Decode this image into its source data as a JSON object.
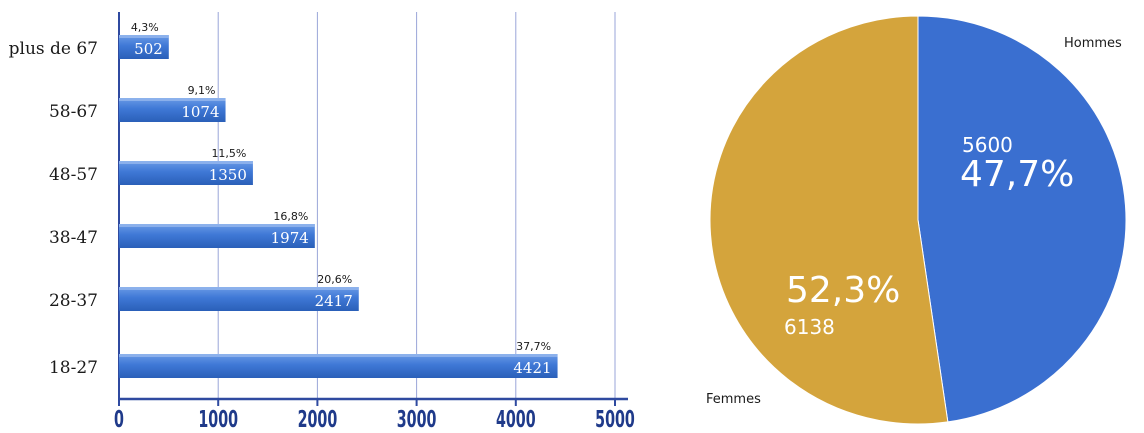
{
  "chart_data": [
    {
      "type": "bar",
      "orientation": "horizontal",
      "categories": [
        "plus de 67",
        "58-67",
        "48-57",
        "38-47",
        "28-37",
        "18-27"
      ],
      "values": [
        502,
        1074,
        1350,
        1974,
        2417,
        4421
      ],
      "percent_labels": [
        "4,3%",
        "9,1%",
        "11,5%",
        "16,8%",
        "20,6%",
        "37,7%"
      ],
      "value_labels": [
        "502",
        "1074",
        "1350",
        "1974",
        "2417",
        "4421"
      ],
      "xlim": [
        0,
        5000
      ],
      "x_ticks": [
        "0",
        "1000",
        "2000",
        "3000",
        "4000",
        "5000"
      ],
      "grid": true,
      "colors": {
        "bar": "#3f78d6",
        "bar_dark": "#2a5fb8",
        "grid": "#9aa6d8",
        "axis": "#2f4aa0"
      }
    },
    {
      "type": "pie",
      "slices": [
        {
          "label": "Hommes",
          "value": 5600,
          "value_label": "5600",
          "percent_label": "47,7%",
          "color": "#3a6fd0"
        },
        {
          "label": "Femmes",
          "value": 6138,
          "value_label": "6138",
          "percent_label": "52,3%",
          "color": "#d4a43c"
        }
      ]
    }
  ]
}
